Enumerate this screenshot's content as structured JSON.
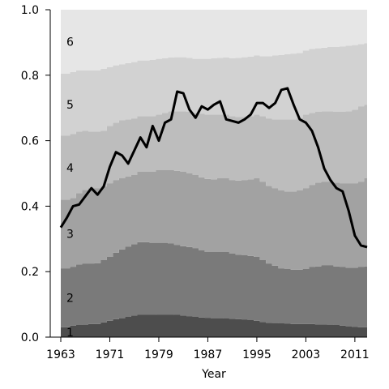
{
  "chart_data": {
    "type": "area",
    "stacking": "cumulative-share",
    "title": "",
    "xlabel": "Year",
    "ylabel": "",
    "xlim": [
      1963,
      2013
    ],
    "ylim": [
      0,
      1.0
    ],
    "grid": false,
    "legend": "inline band labels",
    "x_ticks": [
      1963,
      1971,
      1979,
      1987,
      1995,
      2003,
      2011
    ],
    "y_ticks": [
      "0.0",
      "0.2",
      "0.4",
      "0.6",
      "0.8",
      "1.0"
    ],
    "band_labels": [
      "1",
      "2",
      "3",
      "4",
      "5",
      "6"
    ],
    "band_colors": [
      "#4d4d4d",
      "#7a7a7a",
      "#a2a2a2",
      "#bdbdbd",
      "#d2d2d2",
      "#e6e6e6"
    ],
    "line_color": "#000000",
    "x": [
      1963,
      1964,
      1965,
      1966,
      1967,
      1968,
      1969,
      1970,
      1971,
      1972,
      1973,
      1974,
      1975,
      1976,
      1977,
      1978,
      1979,
      1980,
      1981,
      1982,
      1983,
      1984,
      1985,
      1986,
      1987,
      1988,
      1989,
      1990,
      1991,
      1992,
      1993,
      1994,
      1995,
      1996,
      1997,
      1998,
      1999,
      2000,
      2001,
      2002,
      2003,
      2004,
      2005,
      2006,
      2007,
      2008,
      2009,
      2010,
      2011,
      2012,
      2013
    ],
    "boundaries": [
      [
        0.03,
        0.03,
        0.035,
        0.037,
        0.038,
        0.04,
        0.04,
        0.045,
        0.05,
        0.055,
        0.058,
        0.062,
        0.066,
        0.068,
        0.068,
        0.068,
        0.069,
        0.069,
        0.069,
        0.068,
        0.066,
        0.064,
        0.062,
        0.06,
        0.059,
        0.058,
        0.058,
        0.057,
        0.056,
        0.055,
        0.054,
        0.052,
        0.05,
        0.046,
        0.044,
        0.043,
        0.042,
        0.041,
        0.04,
        0.04,
        0.04,
        0.04,
        0.039,
        0.039,
        0.038,
        0.037,
        0.035,
        0.033,
        0.031,
        0.03,
        0.03
      ],
      [
        0.21,
        0.21,
        0.215,
        0.222,
        0.225,
        0.225,
        0.226,
        0.235,
        0.245,
        0.258,
        0.268,
        0.276,
        0.284,
        0.29,
        0.29,
        0.288,
        0.288,
        0.288,
        0.286,
        0.282,
        0.278,
        0.275,
        0.272,
        0.265,
        0.26,
        0.26,
        0.26,
        0.26,
        0.255,
        0.252,
        0.25,
        0.248,
        0.245,
        0.235,
        0.225,
        0.218,
        0.21,
        0.208,
        0.206,
        0.206,
        0.208,
        0.214,
        0.216,
        0.22,
        0.22,
        0.216,
        0.214,
        0.212,
        0.212,
        0.214,
        0.216
      ],
      [
        0.42,
        0.42,
        0.425,
        0.44,
        0.45,
        0.455,
        0.455,
        0.46,
        0.47,
        0.48,
        0.485,
        0.49,
        0.495,
        0.505,
        0.505,
        0.505,
        0.51,
        0.51,
        0.51,
        0.508,
        0.505,
        0.5,
        0.495,
        0.488,
        0.483,
        0.482,
        0.485,
        0.485,
        0.48,
        0.478,
        0.48,
        0.482,
        0.485,
        0.475,
        0.462,
        0.455,
        0.448,
        0.445,
        0.445,
        0.448,
        0.455,
        0.465,
        0.472,
        0.475,
        0.475,
        0.472,
        0.47,
        0.47,
        0.47,
        0.475,
        0.485
      ],
      [
        0.615,
        0.615,
        0.62,
        0.628,
        0.63,
        0.628,
        0.628,
        0.63,
        0.645,
        0.655,
        0.662,
        0.665,
        0.668,
        0.675,
        0.675,
        0.675,
        0.68,
        0.685,
        0.69,
        0.69,
        0.69,
        0.688,
        0.685,
        0.682,
        0.68,
        0.68,
        0.68,
        0.68,
        0.675,
        0.672,
        0.672,
        0.675,
        0.68,
        0.675,
        0.668,
        0.665,
        0.665,
        0.665,
        0.665,
        0.67,
        0.68,
        0.685,
        0.688,
        0.69,
        0.69,
        0.688,
        0.688,
        0.69,
        0.695,
        0.705,
        0.71
      ],
      [
        0.805,
        0.805,
        0.81,
        0.815,
        0.815,
        0.815,
        0.815,
        0.82,
        0.825,
        0.83,
        0.833,
        0.837,
        0.84,
        0.845,
        0.845,
        0.847,
        0.85,
        0.852,
        0.854,
        0.855,
        0.855,
        0.853,
        0.85,
        0.85,
        0.85,
        0.852,
        0.853,
        0.854,
        0.852,
        0.853,
        0.855,
        0.857,
        0.86,
        0.858,
        0.858,
        0.86,
        0.862,
        0.864,
        0.866,
        0.868,
        0.875,
        0.88,
        0.882,
        0.884,
        0.886,
        0.886,
        0.888,
        0.89,
        0.892,
        0.895,
        0.898
      ],
      [
        1,
        1,
        1,
        1,
        1,
        1,
        1,
        1,
        1,
        1,
        1,
        1,
        1,
        1,
        1,
        1,
        1,
        1,
        1,
        1,
        1,
        1,
        1,
        1,
        1,
        1,
        1,
        1,
        1,
        1,
        1,
        1,
        1,
        1,
        1,
        1,
        1,
        1,
        1,
        1,
        1,
        1,
        1,
        1,
        1,
        1,
        1,
        1,
        1,
        1,
        1
      ]
    ],
    "line": [
      0.335,
      0.365,
      0.4,
      0.405,
      0.43,
      0.455,
      0.435,
      0.46,
      0.52,
      0.565,
      0.555,
      0.53,
      0.57,
      0.61,
      0.58,
      0.645,
      0.6,
      0.655,
      0.665,
      0.75,
      0.745,
      0.695,
      0.67,
      0.705,
      0.695,
      0.71,
      0.72,
      0.665,
      0.66,
      0.655,
      0.665,
      0.68,
      0.715,
      0.715,
      0.7,
      0.715,
      0.755,
      0.76,
      0.71,
      0.665,
      0.655,
      0.63,
      0.58,
      0.515,
      0.48,
      0.455,
      0.445,
      0.385,
      0.31,
      0.28,
      0.275
    ],
    "line_tail": [
      [
        2012,
        0.28
      ],
      [
        2013,
        0.28
      ]
    ]
  }
}
